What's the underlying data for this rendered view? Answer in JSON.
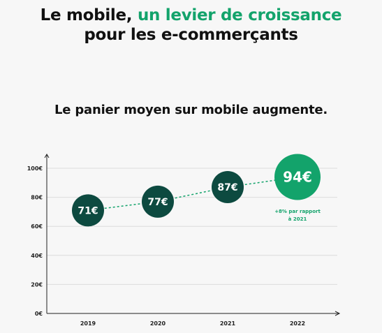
{
  "header": {
    "title_part1": "Le mobile, ",
    "title_accent": "un levier de croissance",
    "title_line2": "pour les e-commerçants"
  },
  "colors": {
    "accent": "#13a36b",
    "dark_bubble": "#0d4a40",
    "grid": "#dcdcdc",
    "axis": "#222222"
  },
  "chart_data": {
    "type": "line",
    "title": "Le panier moyen sur mobile augmente.",
    "categories": [
      "2019",
      "2020",
      "2021",
      "2022"
    ],
    "values": [
      71,
      77,
      87,
      94
    ],
    "value_labels": [
      "71€",
      "77€",
      "87€",
      "94€"
    ],
    "yticks": [
      "0€",
      "20€",
      "40€",
      "60€",
      "80€",
      "100€"
    ],
    "ylim": [
      0,
      100
    ],
    "grid": true,
    "highlight_index": 3,
    "annotation": {
      "line1": "+8% par rapport",
      "line2": "à 2021"
    }
  }
}
